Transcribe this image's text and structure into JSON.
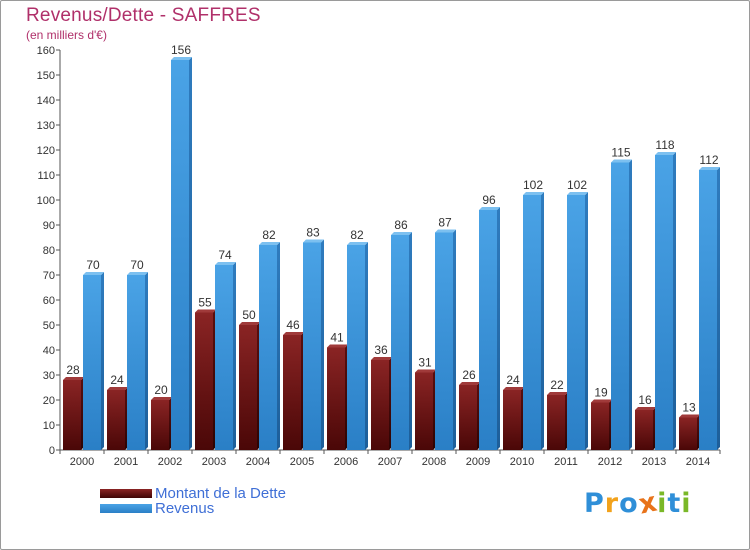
{
  "chart_data": {
    "type": "bar",
    "title": "Revenus/Dette - SAFFRES",
    "subtitle": "(en milliers d'€)",
    "categories": [
      "2000",
      "2001",
      "2002",
      "2003",
      "2004",
      "2005",
      "2006",
      "2007",
      "2008",
      "2009",
      "2010",
      "2011",
      "2012",
      "2013",
      "2014"
    ],
    "series": [
      {
        "name": "Montant de la Dette",
        "color": "#7b1a1a",
        "values": [
          28,
          24,
          20,
          55,
          50,
          46,
          41,
          36,
          31,
          26,
          24,
          22,
          19,
          16,
          13
        ]
      },
      {
        "name": "Revenus",
        "color": "#3d95dc",
        "values": [
          70,
          70,
          156,
          74,
          82,
          83,
          82,
          86,
          87,
          96,
          102,
          102,
          115,
          118,
          112
        ]
      }
    ],
    "ylim": [
      0,
      160
    ],
    "yticks": [
      0,
      10,
      20,
      30,
      40,
      50,
      60,
      70,
      80,
      90,
      100,
      110,
      120,
      130,
      140,
      150,
      160
    ],
    "grid": false,
    "legend_position": "bottom-left"
  },
  "logo": {
    "text": "Proxiti",
    "letters": [
      {
        "ch": "P",
        "color": "#2f8fd8"
      },
      {
        "ch": "r",
        "color": "#f2a21b"
      },
      {
        "ch": "o",
        "color": "#2f8fd8"
      },
      {
        "ch": "x",
        "color": "#e8731a"
      },
      {
        "ch": "i",
        "color": "#7ab828"
      },
      {
        "ch": "t",
        "color": "#2f8fd8"
      },
      {
        "ch": "i",
        "color": "#7ab828"
      }
    ]
  }
}
